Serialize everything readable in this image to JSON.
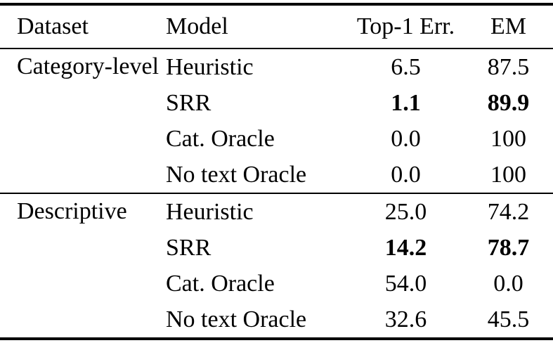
{
  "table": {
    "columns": [
      "Dataset",
      "Model",
      "Top-1 Err.",
      "EM"
    ],
    "sections": [
      {
        "dataset": "Category-level",
        "rows": [
          {
            "model": "Heuristic",
            "top1_err": "6.5",
            "em": "87.5",
            "bold_values": false
          },
          {
            "model": "SRR",
            "top1_err": "1.1",
            "em": "89.9",
            "bold_values": true
          },
          {
            "model": "Cat. Oracle",
            "top1_err": "0.0",
            "em": "100",
            "bold_values": false
          },
          {
            "model": "No text Oracle",
            "top1_err": "0.0",
            "em": "100",
            "bold_values": false
          }
        ]
      },
      {
        "dataset": "Descriptive",
        "rows": [
          {
            "model": "Heuristic",
            "top1_err": "25.0",
            "em": "74.2",
            "bold_values": false
          },
          {
            "model": "SRR",
            "top1_err": "14.2",
            "em": "78.7",
            "bold_values": true
          },
          {
            "model": "Cat. Oracle",
            "top1_err": "54.0",
            "em": "0.0",
            "bold_values": false
          },
          {
            "model": "No text Oracle",
            "top1_err": "32.6",
            "em": "45.5",
            "bold_values": false
          }
        ]
      }
    ]
  },
  "colors": {
    "text": "#000000",
    "rules": "#000000",
    "background": "#ffffff"
  }
}
